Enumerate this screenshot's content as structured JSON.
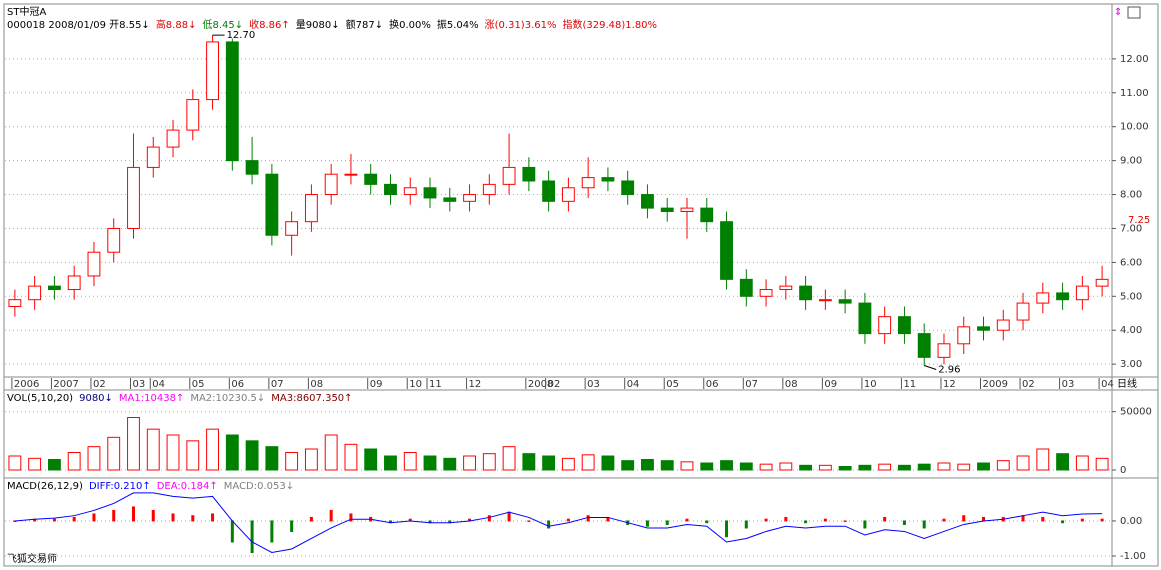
{
  "title": "ST中冠A",
  "info": [
    {
      "text": "000018 2008/01/09 开8.55↓",
      "color": "#000000"
    },
    {
      "text": "高8.88↓",
      "color": "#e00000"
    },
    {
      "text": "低8.45↓",
      "color": "#008000"
    },
    {
      "text": "收8.86↑",
      "color": "#e00000"
    },
    {
      "text": "量9080↓",
      "color": "#000000"
    },
    {
      "text": "额787↓",
      "color": "#000000"
    },
    {
      "text": "换0.00%",
      "color": "#000000"
    },
    {
      "text": "振5.04%",
      "color": "#000000"
    },
    {
      "text": "涨(0.31)3.61%",
      "color": "#e00000"
    },
    {
      "text": "指数(329.48)1.80%",
      "color": "#e00000"
    }
  ],
  "period_label": "日线",
  "footer": "飞狐交易师",
  "chart_data": [
    {
      "type": "candlestick",
      "categories": [
        "2006",
        null,
        "2007",
        null,
        "02",
        null,
        "03",
        "04",
        null,
        "05",
        null,
        "06",
        null,
        "07",
        null,
        "08",
        null,
        null,
        "09",
        null,
        "10",
        "11",
        null,
        "12",
        null,
        null,
        "2008",
        "02",
        null,
        "03",
        null,
        "04",
        null,
        "05",
        null,
        "06",
        null,
        "07",
        null,
        "08",
        null,
        "09",
        null,
        "10",
        null,
        "11",
        null,
        "12",
        null,
        "2009",
        null,
        "02",
        null,
        "03",
        null,
        "04"
      ],
      "open": [
        4.7,
        4.9,
        5.3,
        5.2,
        5.6,
        6.3,
        7.0,
        8.8,
        9.4,
        9.9,
        10.8,
        12.5,
        9.0,
        8.6,
        6.8,
        7.2,
        8.0,
        8.6,
        8.6,
        8.3,
        8.0,
        8.2,
        7.9,
        7.8,
        8.0,
        8.3,
        8.8,
        8.4,
        7.8,
        8.2,
        8.5,
        8.4,
        8.0,
        7.6,
        7.5,
        7.6,
        7.2,
        5.5,
        5.0,
        5.2,
        5.3,
        4.9,
        4.9,
        4.8,
        3.9,
        4.4,
        3.9,
        3.2,
        3.6,
        4.1,
        4.0,
        4.3,
        4.8,
        5.1,
        4.9,
        5.3
      ],
      "high": [
        5.2,
        5.6,
        5.6,
        5.9,
        6.6,
        7.3,
        9.8,
        9.7,
        10.2,
        11.1,
        12.7,
        12.6,
        9.7,
        8.9,
        7.5,
        8.3,
        8.9,
        9.2,
        8.9,
        8.6,
        8.5,
        8.5,
        8.2,
        8.3,
        8.6,
        9.8,
        9.1,
        8.7,
        8.5,
        9.1,
        8.8,
        8.7,
        8.3,
        7.9,
        7.9,
        7.9,
        7.5,
        5.8,
        5.5,
        5.6,
        5.6,
        5.2,
        5.2,
        5.1,
        4.7,
        4.7,
        4.2,
        3.9,
        4.4,
        4.4,
        4.6,
        5.1,
        5.4,
        5.4,
        5.6,
        5.9
      ],
      "low": [
        4.4,
        4.6,
        4.9,
        4.9,
        5.3,
        6.0,
        6.7,
        8.5,
        9.1,
        9.6,
        10.5,
        8.7,
        8.3,
        6.5,
        6.2,
        6.9,
        7.7,
        8.3,
        8.0,
        7.7,
        7.7,
        7.6,
        7.5,
        7.5,
        7.7,
        8.0,
        8.1,
        7.5,
        7.5,
        7.9,
        8.1,
        7.7,
        7.3,
        7.2,
        6.7,
        6.9,
        5.2,
        4.7,
        4.7,
        4.9,
        4.6,
        4.6,
        4.5,
        3.6,
        3.6,
        3.6,
        2.96,
        3.0,
        3.3,
        3.7,
        3.7,
        4.0,
        4.5,
        4.6,
        4.6,
        5.0
      ],
      "close": [
        4.9,
        5.3,
        5.2,
        5.6,
        6.3,
        7.0,
        8.8,
        9.4,
        9.9,
        10.8,
        12.5,
        9.0,
        8.6,
        6.8,
        7.2,
        8.0,
        8.6,
        8.6,
        8.3,
        8.0,
        8.2,
        7.9,
        7.8,
        8.0,
        8.3,
        8.8,
        8.4,
        7.8,
        8.2,
        8.5,
        8.4,
        8.0,
        7.6,
        7.5,
        7.6,
        7.2,
        5.5,
        5.0,
        5.2,
        5.3,
        4.9,
        4.9,
        4.8,
        3.9,
        4.4,
        3.9,
        3.2,
        3.6,
        4.1,
        4.0,
        4.3,
        4.8,
        5.1,
        4.9,
        5.3,
        5.5
      ],
      "up_color": "#ff0000",
      "down_color": "#008000",
      "ylim": [
        2.68,
        13.5
      ],
      "yticks": [
        {
          "value": 3,
          "label": "3.00"
        },
        {
          "value": 4,
          "label": "4.00"
        },
        {
          "value": 5,
          "label": "5.00"
        },
        {
          "value": 6,
          "label": "6.00"
        },
        {
          "value": 7,
          "label": "7.00"
        },
        {
          "value": 8,
          "label": "8.00"
        },
        {
          "value": 9,
          "label": "9.00"
        },
        {
          "value": 10,
          "label": "10.00"
        },
        {
          "value": 11,
          "label": "11.00"
        },
        {
          "value": 12,
          "label": "12.00"
        }
      ],
      "grid": true,
      "price_marker": 7.25,
      "high_annotation": {
        "value": 12.7,
        "label": "12.70"
      },
      "low_annotation": 2.96
    },
    {
      "type": "bar",
      "legend": [
        {
          "text": "VOL(5,10,20)",
          "color": "#000000"
        },
        {
          "text": "9080↓",
          "color": "#000080"
        },
        {
          "text": "MA1:10438↑",
          "color": "#ff00ff"
        },
        {
          "text": "MA2:10230.5↓",
          "color": "#808080"
        },
        {
          "text": "MA3:8607.350↑",
          "color": "#800000"
        }
      ],
      "values": [
        12000,
        10000,
        9000,
        15000,
        20000,
        28000,
        45000,
        35000,
        30000,
        25000,
        35000,
        30000,
        25000,
        20000,
        15000,
        18000,
        30000,
        22000,
        18000,
        12000,
        15000,
        12000,
        10000,
        12000,
        14000,
        20000,
        14000,
        12000,
        10000,
        13000,
        12000,
        8000,
        9000,
        8000,
        7000,
        6000,
        8000,
        6000,
        5000,
        6000,
        4000,
        4000,
        3000,
        4000,
        5000,
        4000,
        5000,
        6000,
        5000,
        6000,
        8000,
        12000,
        18000,
        14000,
        12000,
        10000
      ],
      "ylim": [
        0,
        66000
      ],
      "yticks": [
        0,
        50000
      ]
    },
    {
      "type": "bar",
      "legend": [
        {
          "text": "MACD(26,12,9)",
          "color": "#000000"
        },
        {
          "text": "DIFF:0.210↑",
          "color": "#0000ff"
        },
        {
          "text": "DEA:0.184↑",
          "color": "#ff00ff"
        },
        {
          "text": "MACD:0.053↓",
          "color": "#808080"
        }
      ],
      "values": [
        0,
        0.05,
        0.05,
        0.1,
        0.2,
        0.3,
        0.4,
        0.3,
        0.2,
        0.15,
        0.2,
        -0.6,
        -0.9,
        -0.6,
        -0.3,
        0.1,
        0.3,
        0.2,
        0.1,
        -0.05,
        0.05,
        -0.05,
        -0.05,
        0.05,
        0.15,
        0.25,
        0,
        -0.2,
        0.05,
        0.15,
        0.1,
        -0.1,
        -0.15,
        -0.1,
        0.05,
        -0.05,
        -0.45,
        -0.2,
        0.05,
        0.1,
        -0.05,
        0.05,
        0,
        -0.2,
        0.1,
        -0.1,
        -0.2,
        0.05,
        0.15,
        0.1,
        0.1,
        0.15,
        0.1,
        -0.05,
        0.05,
        0.05
      ],
      "diff": [
        0,
        0.05,
        0.08,
        0.15,
        0.3,
        0.5,
        0.8,
        0.8,
        0.7,
        0.65,
        0.7,
        0,
        -0.6,
        -0.9,
        -0.8,
        -0.5,
        -0.2,
        0.05,
        0.05,
        -0.05,
        0,
        -0.05,
        -0.05,
        0,
        0.1,
        0.25,
        0.1,
        -0.15,
        -0.05,
        0.1,
        0.1,
        -0.05,
        -0.2,
        -0.2,
        -0.1,
        -0.15,
        -0.6,
        -0.5,
        -0.3,
        -0.15,
        -0.2,
        -0.15,
        -0.15,
        -0.4,
        -0.25,
        -0.3,
        -0.5,
        -0.3,
        -0.1,
        0,
        0.05,
        0.15,
        0.25,
        0.15,
        0.2,
        0.21
      ],
      "diff_color": "#0000ff",
      "up_color": "#ff0000",
      "down_color": "#008000",
      "ylim": [
        -1.2,
        1.14
      ],
      "yticks": [
        {
          "value": 0,
          "label": "0.00"
        },
        {
          "value": -1,
          "label": "-1.00"
        }
      ]
    }
  ]
}
